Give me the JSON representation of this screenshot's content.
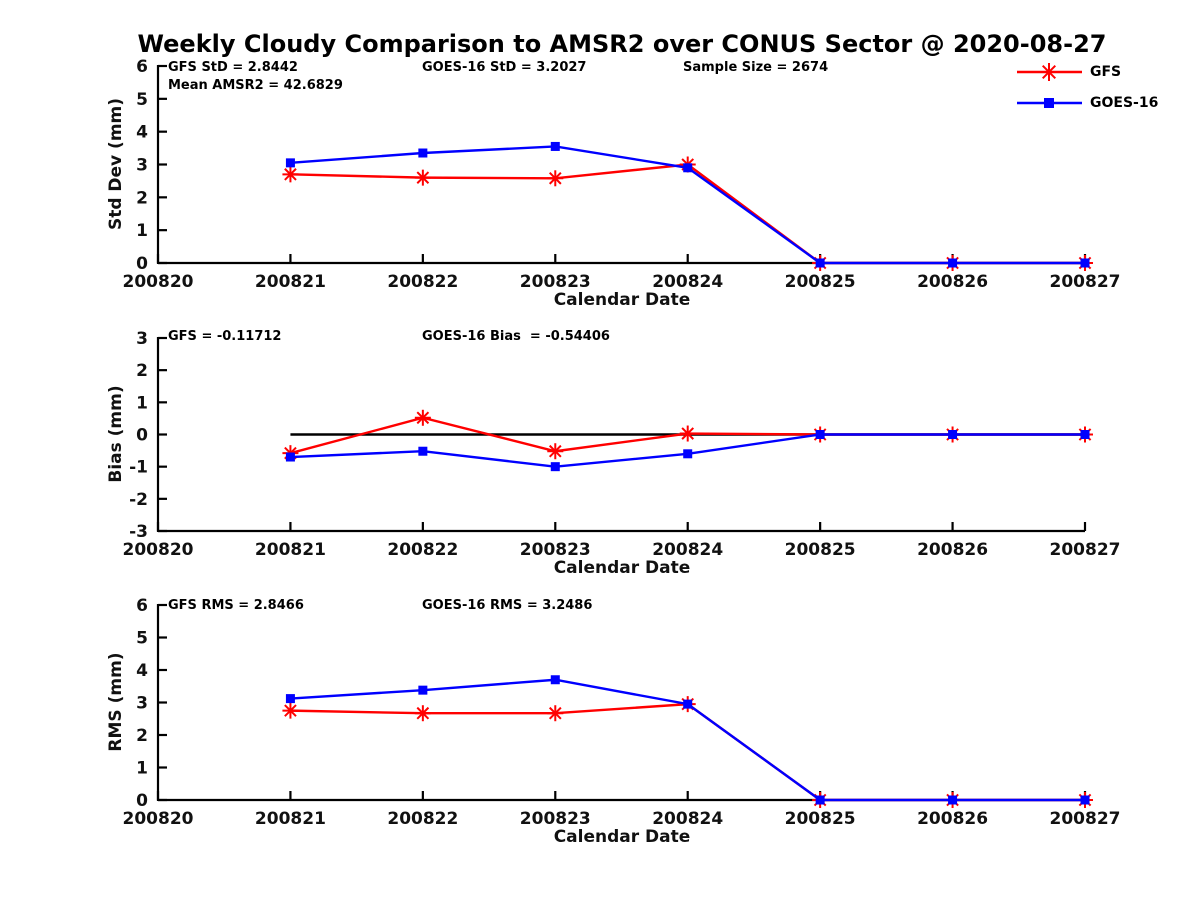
{
  "title": "Weekly Cloudy Comparison to AMSR2 over CONUS Sector @ 2020-08-27",
  "legend": {
    "position": "top-right",
    "items": [
      {
        "label": "GFS",
        "color": "#ff0000",
        "marker": "asterisk"
      },
      {
        "label": "GOES-16",
        "color": "#0000ff",
        "marker": "square"
      }
    ]
  },
  "colors": {
    "gfs": "#ff0000",
    "goes16": "#0000ff",
    "axis": "#000000",
    "background": "#ffffff"
  },
  "chart_data": [
    {
      "name": "std-dev",
      "type": "line",
      "xlabel": "Calendar Date",
      "ylabel": "Std Dev (mm)",
      "xlim": [
        200820,
        200827
      ],
      "ylim": [
        0,
        6
      ],
      "xticks": [
        200820,
        200821,
        200822,
        200823,
        200824,
        200825,
        200826,
        200827
      ],
      "yticks": [
        0,
        1,
        2,
        3,
        4,
        5,
        6
      ],
      "grid": false,
      "zero_line": false,
      "x": [
        200821,
        200822,
        200823,
        200824,
        200825,
        200826,
        200827
      ],
      "series": [
        {
          "name": "GFS",
          "color": "#ff0000",
          "marker": "asterisk",
          "values": [
            2.7,
            2.6,
            2.58,
            3.0,
            0,
            0,
            0
          ]
        },
        {
          "name": "GOES-16",
          "color": "#0000ff",
          "marker": "square",
          "values": [
            3.05,
            3.35,
            3.55,
            2.9,
            0,
            0,
            0
          ]
        }
      ],
      "annotations": [
        {
          "text": "GFS StD = 2.8442"
        },
        {
          "text": "GOES-16 StD = 3.2027"
        },
        {
          "text": "Sample Size = 2674"
        },
        {
          "text": "Mean AMSR2 = 42.6829"
        }
      ]
    },
    {
      "name": "bias",
      "type": "line",
      "xlabel": "Calendar Date",
      "ylabel": "Bias (mm)",
      "xlim": [
        200820,
        200827
      ],
      "ylim": [
        -3,
        3
      ],
      "xticks": [
        200820,
        200821,
        200822,
        200823,
        200824,
        200825,
        200826,
        200827
      ],
      "yticks": [
        -3,
        -2,
        -1,
        0,
        1,
        2,
        3
      ],
      "grid": false,
      "zero_line": true,
      "x": [
        200821,
        200822,
        200823,
        200824,
        200825,
        200826,
        200827
      ],
      "series": [
        {
          "name": "GFS",
          "color": "#ff0000",
          "marker": "asterisk",
          "values": [
            -0.58,
            0.52,
            -0.52,
            0.03,
            0,
            0,
            0
          ]
        },
        {
          "name": "GOES-16",
          "color": "#0000ff",
          "marker": "square",
          "values": [
            -0.7,
            -0.52,
            -1.0,
            -0.6,
            0,
            0,
            0
          ]
        }
      ],
      "annotations": [
        {
          "text": "GFS = -0.11712"
        },
        {
          "text": "GOES-16 Bias  = -0.54406"
        }
      ]
    },
    {
      "name": "rms",
      "type": "line",
      "xlabel": "Calendar Date",
      "ylabel": "RMS (mm)",
      "xlim": [
        200820,
        200827
      ],
      "ylim": [
        0,
        6
      ],
      "xticks": [
        200820,
        200821,
        200822,
        200823,
        200824,
        200825,
        200826,
        200827
      ],
      "yticks": [
        0,
        1,
        2,
        3,
        4,
        5,
        6
      ],
      "grid": false,
      "zero_line": false,
      "x": [
        200821,
        200822,
        200823,
        200824,
        200825,
        200826,
        200827
      ],
      "series": [
        {
          "name": "GFS",
          "color": "#ff0000",
          "marker": "asterisk",
          "values": [
            2.75,
            2.67,
            2.67,
            2.95,
            0,
            0,
            0
          ]
        },
        {
          "name": "GOES-16",
          "color": "#0000ff",
          "marker": "square",
          "values": [
            3.12,
            3.38,
            3.7,
            2.95,
            0,
            0,
            0
          ]
        }
      ],
      "annotations": [
        {
          "text": "GFS RMS = 2.8466"
        },
        {
          "text": "GOES-16 RMS = 3.2486"
        }
      ]
    }
  ]
}
